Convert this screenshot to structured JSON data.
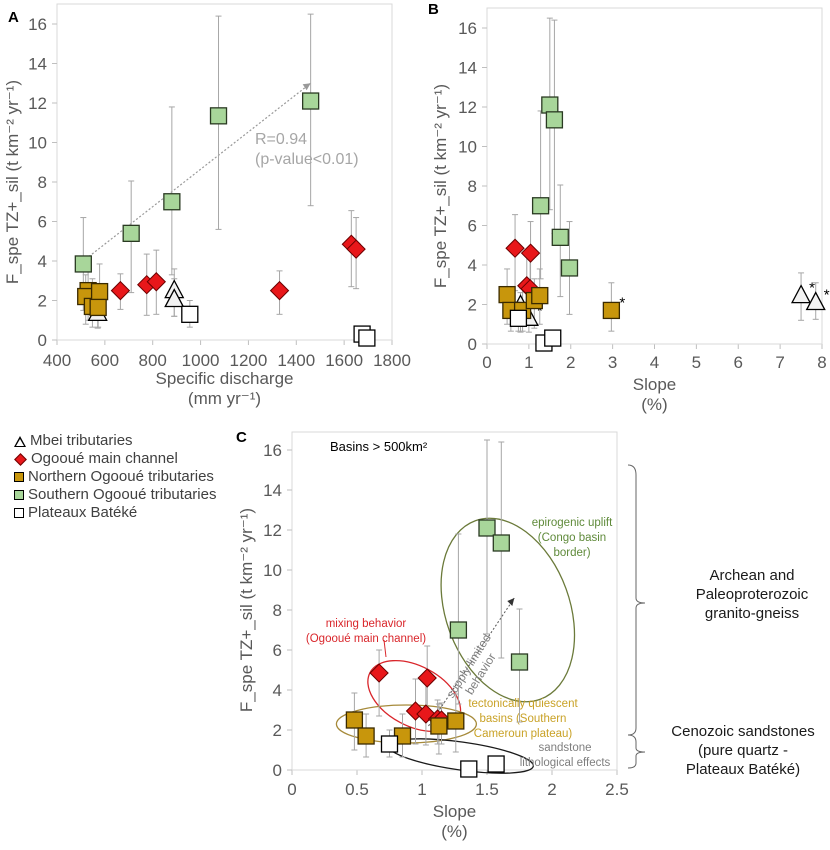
{
  "legend": {
    "items": [
      {
        "label": "Mbei tributaries",
        "symbol": "triangle",
        "fill": "#f2f2f2"
      },
      {
        "label": "Ogooué main channel",
        "symbol": "diamond",
        "fill": "#e8171a"
      },
      {
        "label": "Northern Ogooué tributaries",
        "symbol": "square",
        "fill": "#c8960c"
      },
      {
        "label": "Southern Ogooué tributaries",
        "symbol": "square",
        "fill": "#a8d69a"
      },
      {
        "label": "Plateaux Batéké",
        "symbol": "square",
        "fill": "#ffffff"
      }
    ]
  },
  "geology": {
    "upper": [
      "Archean and",
      "Paleoproterozoic",
      "granito-gneiss"
    ],
    "lower": [
      "Cenozoic sandstones",
      "(pure quartz -",
      "Plateaux Batéké)"
    ]
  },
  "chart_data": [
    {
      "panel": "A",
      "type": "scatter",
      "xlabel": "Specific discharge",
      "xlabel_unit": "(mm yr⁻¹)",
      "ylabel": "F_spe TZ+_sil (t km⁻² yr⁻¹)",
      "xlim": [
        400,
        1800
      ],
      "ylim": [
        0,
        16
      ],
      "xticks": [
        "400",
        "600",
        "800",
        "1000",
        "1200",
        "1400",
        "1600",
        "1800"
      ],
      "yticks": [
        "0",
        "2",
        "4",
        "6",
        "8",
        "10",
        "12",
        "14",
        "16"
      ],
      "annotations": [
        {
          "text": "R=0.94",
          "color": "#a6a6a6"
        },
        {
          "text": "(p-value<0.01)",
          "color": "#a6a6a6"
        }
      ],
      "trend_arrow": {
        "from": [
          520,
          4.1
        ],
        "to": [
          1460,
          13.0
        ]
      },
      "series": [
        {
          "name": "Mbei tributaries",
          "points": [
            {
              "x": 570,
              "y": 1.35,
              "lo": 0.6,
              "hi": 2.1
            },
            {
              "x": 890,
              "y": 2.5,
              "lo": 1.2,
              "hi": 3.6
            },
            {
              "x": 890,
              "y": 2.05,
              "lo": 1.2,
              "hi": 3.1
            }
          ]
        },
        {
          "name": "Ogooué main channel",
          "points": [
            {
              "x": 665,
              "y": 2.5,
              "lo": 1.55,
              "hi": 3.35
            },
            {
              "x": 775,
              "y": 2.8,
              "lo": 1.25,
              "hi": 4.35
            },
            {
              "x": 815,
              "y": 2.95,
              "lo": 1.3,
              "hi": 4.55
            },
            {
              "x": 1330,
              "y": 2.5,
              "lo": 1.3,
              "hi": 3.5
            },
            {
              "x": 1630,
              "y": 4.85,
              "lo": 2.7,
              "hi": 6.55
            },
            {
              "x": 1650,
              "y": 4.6,
              "lo": 2.6,
              "hi": 6.2
            }
          ]
        },
        {
          "name": "Northern Ogooué tributaries",
          "points": [
            {
              "x": 530,
              "y": 2.5,
              "lo": 1.0,
              "hi": 3.8
            },
            {
              "x": 520,
              "y": 2.2,
              "lo": 0.8,
              "hi": 3.3
            },
            {
              "x": 548,
              "y": 1.7,
              "lo": 0.65,
              "hi": 3.1
            },
            {
              "x": 578,
              "y": 2.45,
              "lo": 1.0,
              "hi": 3.85
            },
            {
              "x": 572,
              "y": 1.65,
              "lo": 0.65,
              "hi": 2.8
            }
          ]
        },
        {
          "name": "Southern Ogooué tributaries",
          "points": [
            {
              "x": 510,
              "y": 3.85,
              "lo": 1.5,
              "hi": 6.2
            },
            {
              "x": 710,
              "y": 5.4,
              "lo": 2.4,
              "hi": 8.05
            },
            {
              "x": 880,
              "y": 7.0,
              "lo": 3.3,
              "hi": 11.8
            },
            {
              "x": 1075,
              "y": 11.35,
              "lo": 5.6,
              "hi": 16.4
            },
            {
              "x": 1460,
              "y": 12.1,
              "lo": 6.8,
              "hi": 16.5
            }
          ]
        },
        {
          "name": "Plateaux Batéké",
          "points": [
            {
              "x": 955,
              "y": 1.3,
              "lo": 0.65,
              "hi": 2.0
            },
            {
              "x": 1675,
              "y": 0.3,
              "lo": 0.3,
              "hi": 0.3
            },
            {
              "x": 1695,
              "y": 0.1,
              "lo": 0.1,
              "hi": 0.1
            }
          ]
        }
      ]
    },
    {
      "panel": "B",
      "type": "scatter",
      "xlabel": "Slope",
      "xlabel_unit": "(%)",
      "ylabel": "F_spe TZ+_sil (t km⁻² yr⁻¹)",
      "xlim": [
        0,
        8
      ],
      "ylim": [
        0,
        16
      ],
      "xticks": [
        "0",
        "1",
        "2",
        "3",
        "4",
        "5",
        "6",
        "7",
        "8"
      ],
      "yticks": [
        "0",
        "2",
        "4",
        "6",
        "8",
        "10",
        "12",
        "14",
        "16"
      ],
      "annotations": [
        {
          "text": "*",
          "meaning": "outlier markers"
        }
      ],
      "series": [
        {
          "name": "Mbei tributaries",
          "points": [
            {
              "x": 0.8,
              "y": 1.95,
              "lo": 0.6,
              "hi": 2.6,
              "star": true
            },
            {
              "x": 1.0,
              "y": 1.3,
              "lo": 0.6,
              "hi": 1.9,
              "star": true
            },
            {
              "x": 7.5,
              "y": 2.45,
              "lo": 1.2,
              "hi": 3.6,
              "star": true
            },
            {
              "x": 7.85,
              "y": 2.1,
              "lo": 1.25,
              "hi": 3.1,
              "star": true
            }
          ]
        },
        {
          "name": "Ogooué main channel",
          "points": [
            {
              "x": 0.67,
              "y": 4.85,
              "lo": 2.7,
              "hi": 6.55
            },
            {
              "x": 1.04,
              "y": 4.6,
              "lo": 2.6,
              "hi": 6.2
            },
            {
              "x": 0.95,
              "y": 2.95,
              "lo": 1.3,
              "hi": 4.55
            },
            {
              "x": 1.03,
              "y": 2.8,
              "lo": 1.25,
              "hi": 4.35
            }
          ]
        },
        {
          "name": "Northern Ogooué tributaries",
          "points": [
            {
              "x": 0.48,
              "y": 2.5,
              "lo": 1.0,
              "hi": 3.8
            },
            {
              "x": 0.57,
              "y": 1.7,
              "lo": 0.65,
              "hi": 2.8
            },
            {
              "x": 0.85,
              "y": 1.7,
              "lo": 0.65,
              "hi": 2.8
            },
            {
              "x": 1.13,
              "y": 2.2,
              "lo": 0.8,
              "hi": 3.3
            },
            {
              "x": 1.26,
              "y": 2.45,
              "lo": 1.0,
              "hi": 3.8
            },
            {
              "x": 2.97,
              "y": 1.7,
              "lo": 0.65,
              "hi": 3.1,
              "star": true
            }
          ]
        },
        {
          "name": "Southern Ogooué tributaries",
          "points": [
            {
              "x": 1.5,
              "y": 12.1,
              "lo": 6.8,
              "hi": 16.5
            },
            {
              "x": 1.61,
              "y": 11.35,
              "lo": 5.6,
              "hi": 16.4
            },
            {
              "x": 1.28,
              "y": 7.0,
              "lo": 3.3,
              "hi": 11.8
            },
            {
              "x": 1.75,
              "y": 5.4,
              "lo": 2.4,
              "hi": 8.05
            },
            {
              "x": 1.97,
              "y": 3.85,
              "lo": 1.5,
              "hi": 6.2
            }
          ]
        },
        {
          "name": "Plateaux Batéké",
          "points": [
            {
              "x": 0.75,
              "y": 1.3,
              "lo": 0.65,
              "hi": 2.0
            },
            {
              "x": 1.36,
              "y": 0.05,
              "lo": 0.05,
              "hi": 0.05
            },
            {
              "x": 1.57,
              "y": 0.3,
              "lo": 0.3,
              "hi": 0.3
            }
          ]
        }
      ]
    },
    {
      "panel": "C",
      "type": "scatter",
      "title": "Basins > 500km²",
      "xlabel": "Slope",
      "xlabel_unit": "(%)",
      "ylabel": "F_spe TZ+_sil (t km⁻² yr⁻¹)",
      "xlim": [
        0,
        2.5
      ],
      "ylim": [
        0,
        16
      ],
      "xticks": [
        "0",
        "0.5",
        "1",
        "1.5",
        "2",
        "2.5"
      ],
      "yticks": [
        "0",
        "2",
        "4",
        "6",
        "8",
        "10",
        "12",
        "14",
        "16"
      ],
      "annotations": [
        {
          "text": "epirogenic uplift",
          "color": "#5f8a3a"
        },
        {
          "text": "(Congo basin",
          "color": "#5f8a3a"
        },
        {
          "text": "border)",
          "color": "#5f8a3a"
        },
        {
          "text": "mixing behavior",
          "color": "#d9262b"
        },
        {
          "text": "(Ogooué main channel)",
          "color": "#d9262b"
        },
        {
          "text": "tectonically quiescent",
          "color": "#c9a227"
        },
        {
          "text": "basins (Southern",
          "color": "#c9a227"
        },
        {
          "text": "Cameroun plateau)",
          "color": "#c9a227"
        },
        {
          "text": "sandstone",
          "color": "#7f7f7f"
        },
        {
          "text": "lithological effects",
          "color": "#7f7f7f"
        },
        {
          "text": "supply limited",
          "color": "#7f7f7f"
        },
        {
          "text": "behavior",
          "color": "#7f7f7f"
        }
      ],
      "ellipses": [
        {
          "group": "epirogenic uplift",
          "color": "#6b7a3a"
        },
        {
          "group": "mixing behavior",
          "color": "#d9262b"
        },
        {
          "group": "tectonically quiescent",
          "color": "#a68a3a"
        },
        {
          "group": "sandstone",
          "color": "#1a1a1a"
        }
      ],
      "series": [
        {
          "name": "Ogooué main channel",
          "points": [
            {
              "x": 0.67,
              "y": 4.85,
              "lo": 2.7,
              "hi": 6.0
            },
            {
              "x": 1.04,
              "y": 4.6,
              "lo": 2.6,
              "hi": 6.2
            },
            {
              "x": 0.95,
              "y": 2.95,
              "lo": 1.3,
              "hi": 4.55
            },
            {
              "x": 1.03,
              "y": 2.8,
              "lo": 1.25,
              "hi": 4.35
            },
            {
              "x": 1.12,
              "y": 2.55,
              "lo": 1.3,
              "hi": 3.5
            },
            {
              "x": 1.15,
              "y": 2.5,
              "lo": 1.3,
              "hi": 3.35
            }
          ]
        },
        {
          "name": "Northern Ogooué tributaries",
          "points": [
            {
              "x": 0.48,
              "y": 2.5,
              "lo": 1.0,
              "hi": 3.85
            },
            {
              "x": 0.57,
              "y": 1.7,
              "lo": 0.65,
              "hi": 2.8
            },
            {
              "x": 0.85,
              "y": 1.7,
              "lo": 0.65,
              "hi": 2.8
            },
            {
              "x": 1.13,
              "y": 2.2,
              "lo": 0.8,
              "hi": 3.3
            },
            {
              "x": 1.26,
              "y": 2.45,
              "lo": 0.9,
              "hi": 3.8
            }
          ]
        },
        {
          "name": "Southern Ogooué tributaries",
          "points": [
            {
              "x": 1.5,
              "y": 12.1,
              "lo": 6.8,
              "hi": 16.5
            },
            {
              "x": 1.61,
              "y": 11.35,
              "lo": 5.6,
              "hi": 16.4
            },
            {
              "x": 1.28,
              "y": 7.0,
              "lo": 3.3,
              "hi": 11.8
            },
            {
              "x": 1.75,
              "y": 5.4,
              "lo": 2.4,
              "hi": 8.05
            }
          ]
        },
        {
          "name": "Plateaux Batéké",
          "points": [
            {
              "x": 0.75,
              "y": 1.3,
              "lo": 0.65,
              "hi": 2.0
            },
            {
              "x": 1.36,
              "y": 0.05,
              "lo": 0.05,
              "hi": 0.05
            },
            {
              "x": 1.57,
              "y": 0.3,
              "lo": 0.3,
              "hi": 0.3
            }
          ]
        }
      ]
    }
  ]
}
